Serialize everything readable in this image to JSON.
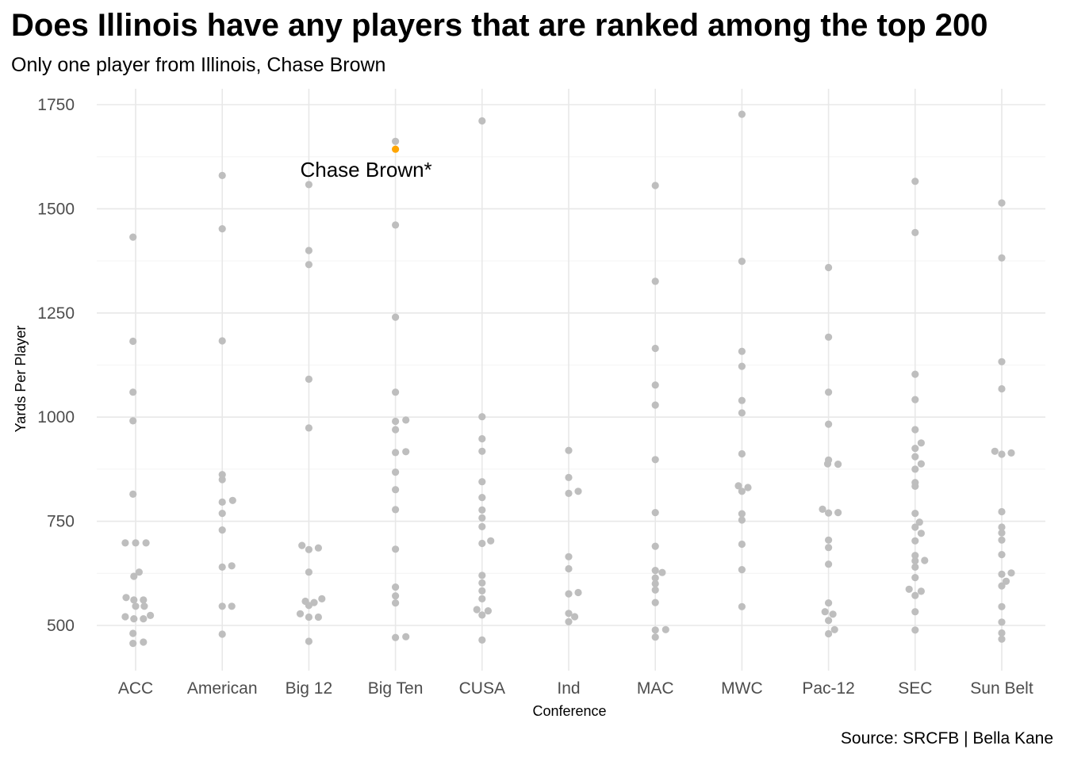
{
  "chart_data": {
    "type": "scatter",
    "title": "Does Illinois have any players that are ranked among the top 200",
    "subtitle": "Only one player from Illinois, Chase Brown",
    "caption": "Source: SRCFB | Bella Kane",
    "xlabel": "Conference",
    "ylabel": "Yards Per Player",
    "categories": [
      "ACC",
      "American",
      "Big 12",
      "Big Ten",
      "CUSA",
      "Ind",
      "MAC",
      "MWC",
      "Pac-12",
      "SEC",
      "Sun Belt"
    ],
    "y_ticks": [
      500,
      750,
      1000,
      1250,
      1500,
      1750
    ],
    "y_tick_labels": [
      "500",
      "750",
      "1000",
      "1250",
      "1500",
      "1750"
    ],
    "ylim": [
      400,
      1780
    ],
    "grid": true,
    "point_color": "#bebebe",
    "highlight_color": "#ffa500",
    "annotation": {
      "text": "Chase Brown*",
      "category": "Big Ten",
      "value": 1643
    },
    "series": [
      {
        "category": "ACC",
        "points": [
          [
            -0.03,
            1432
          ],
          [
            -0.03,
            1182
          ],
          [
            -0.03,
            1060
          ],
          [
            -0.03,
            991
          ],
          [
            -0.03,
            815
          ],
          [
            -0.12,
            698
          ],
          [
            0.0,
            698
          ],
          [
            0.12,
            698
          ],
          [
            0.04,
            628
          ],
          [
            -0.02,
            618
          ],
          [
            -0.11,
            567
          ],
          [
            -0.02,
            561
          ],
          [
            0.09,
            561
          ],
          [
            0.0,
            546
          ],
          [
            0.1,
            546
          ],
          [
            -0.12,
            521
          ],
          [
            -0.02,
            516
          ],
          [
            0.09,
            516
          ],
          [
            0.17,
            524
          ],
          [
            -0.03,
            481
          ],
          [
            -0.03,
            457
          ],
          [
            0.09,
            460
          ]
        ]
      },
      {
        "category": "American",
        "points": [
          [
            0.0,
            1580
          ],
          [
            0.0,
            1452
          ],
          [
            0.0,
            1183
          ],
          [
            0.0,
            862
          ],
          [
            0.0,
            850
          ],
          [
            0.0,
            796
          ],
          [
            0.12,
            800
          ],
          [
            0.0,
            769
          ],
          [
            0.0,
            729
          ],
          [
            0.0,
            640
          ],
          [
            0.11,
            643
          ],
          [
            0.0,
            546
          ],
          [
            0.11,
            546
          ],
          [
            0.0,
            479
          ]
        ]
      },
      {
        "category": "Big 12",
        "points": [
          [
            0.0,
            1558
          ],
          [
            0.0,
            1400
          ],
          [
            0.0,
            1366
          ],
          [
            0.0,
            1091
          ],
          [
            0.0,
            974
          ],
          [
            -0.08,
            692
          ],
          [
            0.0,
            682
          ],
          [
            0.11,
            686
          ],
          [
            0.0,
            628
          ],
          [
            -0.04,
            558
          ],
          [
            0.06,
            555
          ],
          [
            0.15,
            564
          ],
          [
            0.0,
            548
          ],
          [
            -0.1,
            528
          ],
          [
            0.0,
            520
          ],
          [
            0.11,
            520
          ],
          [
            0.0,
            462
          ]
        ]
      },
      {
        "category": "Big Ten",
        "points": [
          [
            0.0,
            1662
          ],
          [
            0.0,
            1461
          ],
          [
            0.0,
            1240
          ],
          [
            0.0,
            1060
          ],
          [
            0.0,
            990
          ],
          [
            0.12,
            993
          ],
          [
            0.0,
            970
          ],
          [
            0.0,
            915
          ],
          [
            0.12,
            917
          ],
          [
            0.0,
            868
          ],
          [
            0.0,
            826
          ],
          [
            0.0,
            778
          ],
          [
            0.0,
            683
          ],
          [
            0.0,
            592
          ],
          [
            0.0,
            571
          ],
          [
            0.0,
            554
          ],
          [
            0.0,
            471
          ],
          [
            0.12,
            473
          ]
        ]
      },
      {
        "category": "CUSA",
        "points": [
          [
            0.0,
            1711
          ],
          [
            0.0,
            1001
          ],
          [
            0.0,
            948
          ],
          [
            0.0,
            918
          ],
          [
            0.0,
            845
          ],
          [
            0.0,
            807
          ],
          [
            0.0,
            777
          ],
          [
            0.0,
            758
          ],
          [
            0.0,
            737
          ],
          [
            0.0,
            697
          ],
          [
            0.1,
            703
          ],
          [
            0.0,
            620
          ],
          [
            0.0,
            602
          ],
          [
            0.0,
            583
          ],
          [
            0.0,
            564
          ],
          [
            -0.06,
            538
          ],
          [
            0.07,
            535
          ],
          [
            0.0,
            525
          ],
          [
            0.0,
            465
          ]
        ]
      },
      {
        "category": "Ind",
        "points": [
          [
            0.0,
            920
          ],
          [
            0.0,
            855
          ],
          [
            0.0,
            817
          ],
          [
            0.11,
            822
          ],
          [
            0.0,
            665
          ],
          [
            0.0,
            636
          ],
          [
            0.0,
            576
          ],
          [
            0.11,
            579
          ],
          [
            0.0,
            529
          ],
          [
            0.07,
            521
          ],
          [
            0.0,
            509
          ]
        ]
      },
      {
        "category": "MAC",
        "points": [
          [
            0.0,
            1556
          ],
          [
            0.0,
            1326
          ],
          [
            0.0,
            1165
          ],
          [
            0.0,
            1077
          ],
          [
            0.0,
            1029
          ],
          [
            0.0,
            898
          ],
          [
            0.0,
            771
          ],
          [
            0.0,
            690
          ],
          [
            0.0,
            632
          ],
          [
            0.08,
            627
          ],
          [
            0.0,
            614
          ],
          [
            0.0,
            600
          ],
          [
            0.0,
            585
          ],
          [
            0.0,
            555
          ],
          [
            0.0,
            489
          ],
          [
            0.12,
            490
          ],
          [
            0.0,
            472
          ]
        ]
      },
      {
        "category": "MWC",
        "points": [
          [
            0.0,
            1727
          ],
          [
            0.0,
            1374
          ],
          [
            0.0,
            1158
          ],
          [
            0.0,
            1122
          ],
          [
            0.0,
            1040
          ],
          [
            0.0,
            1010
          ],
          [
            0.0,
            912
          ],
          [
            -0.04,
            835
          ],
          [
            0.07,
            831
          ],
          [
            0.0,
            822
          ],
          [
            0.0,
            768
          ],
          [
            0.0,
            753
          ],
          [
            0.0,
            695
          ],
          [
            0.0,
            634
          ],
          [
            0.0,
            545
          ]
        ]
      },
      {
        "category": "Pac-12",
        "points": [
          [
            0.0,
            1359
          ],
          [
            0.0,
            1192
          ],
          [
            0.0,
            1060
          ],
          [
            0.0,
            983
          ],
          [
            0.0,
            897
          ],
          [
            -0.01,
            888
          ],
          [
            0.11,
            887
          ],
          [
            -0.07,
            779
          ],
          [
            0.0,
            770
          ],
          [
            0.11,
            771
          ],
          [
            0.0,
            705
          ],
          [
            0.0,
            687
          ],
          [
            0.0,
            647
          ],
          [
            0.0,
            554
          ],
          [
            -0.04,
            533
          ],
          [
            0.05,
            527
          ],
          [
            0.0,
            512
          ],
          [
            0.07,
            490
          ],
          [
            0.0,
            480
          ]
        ]
      },
      {
        "category": "SEC",
        "points": [
          [
            0.0,
            1566
          ],
          [
            0.0,
            1443
          ],
          [
            0.0,
            1103
          ],
          [
            0.0,
            1042
          ],
          [
            0.0,
            970
          ],
          [
            0.07,
            938
          ],
          [
            0.0,
            925
          ],
          [
            0.0,
            905
          ],
          [
            0.07,
            888
          ],
          [
            0.0,
            875
          ],
          [
            0.0,
            843
          ],
          [
            0.0,
            834
          ],
          [
            0.0,
            769
          ],
          [
            0.05,
            748
          ],
          [
            0.0,
            736
          ],
          [
            0.07,
            721
          ],
          [
            0.0,
            703
          ],
          [
            0.0,
            668
          ],
          [
            0.0,
            655
          ],
          [
            0.11,
            656
          ],
          [
            0.0,
            640
          ],
          [
            0.0,
            615
          ],
          [
            -0.07,
            587
          ],
          [
            0.07,
            582
          ],
          [
            0.0,
            572
          ],
          [
            0.0,
            533
          ],
          [
            0.0,
            489
          ]
        ]
      },
      {
        "category": "Sun Belt",
        "points": [
          [
            0.0,
            1514
          ],
          [
            0.0,
            1382
          ],
          [
            0.0,
            1133
          ],
          [
            0.0,
            1068
          ],
          [
            -0.08,
            918
          ],
          [
            0.0,
            911
          ],
          [
            0.11,
            914
          ],
          [
            0.0,
            773
          ],
          [
            0.0,
            736
          ],
          [
            0.0,
            722
          ],
          [
            0.0,
            705
          ],
          [
            0.0,
            670
          ],
          [
            0.0,
            623
          ],
          [
            0.11,
            626
          ],
          [
            0.0,
            595
          ],
          [
            0.05,
            606
          ],
          [
            0.0,
            545
          ],
          [
            0.0,
            508
          ],
          [
            0.0,
            482
          ],
          [
            0.0,
            467
          ]
        ]
      }
    ],
    "highlight": {
      "category": "Big Ten",
      "x_offset": 0.0,
      "value": 1643
    }
  }
}
